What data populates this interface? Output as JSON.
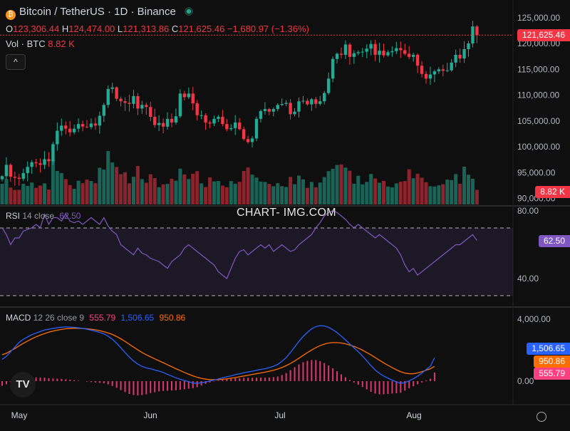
{
  "header": {
    "symbol": "Bitcoin / TetherUS · 1D · Binance",
    "ohlc": {
      "o_label": "O",
      "o": "123,306.44",
      "h_label": "H",
      "h": "124,474.00",
      "l_label": "L",
      "l": "121,313.86",
      "c_label": "C",
      "c": "121,625.46",
      "change": "−1,680.97 (−1.36%)"
    },
    "vol_label": "Vol · BTC",
    "vol_value": "8.82 K",
    "collapse_icon": "^"
  },
  "watermark": "CHART- IMG.COM",
  "colors": {
    "up": "#22ab94",
    "down": "#f23645",
    "rsi": "#7e57c2",
    "macd": "#2962ff",
    "signal": "#ff6d00",
    "hist": "#ff4081"
  },
  "price_axis": {
    "ticks": [
      "125,000.00",
      "120,000.00",
      "115,000.00",
      "110,000.00",
      "105,000.00",
      "100,000.00",
      "95,000.00",
      "90,000.00"
    ],
    "last_tag": "121,625.46",
    "vol_tag": "8.82 K"
  },
  "rsi": {
    "label": "RSI",
    "params": "14 close",
    "value": "62.50",
    "ticks": [
      "80.00",
      "40.00"
    ],
    "tag": "62.50"
  },
  "macd": {
    "label": "MACD",
    "params": "12 26 close 9",
    "hist_value": "555.79",
    "macd_value": "1,506.65",
    "signal_value": "950.86",
    "ticks": [
      "4,000.00",
      "0.00"
    ]
  },
  "time_axis": [
    "May",
    "Jun",
    "Jul",
    "Aug"
  ],
  "chart_data": [
    {
      "type": "candlestick",
      "title": "Bitcoin / TetherUS · 1D · Binance",
      "y_ticks": [
        90000,
        95000,
        100000,
        105000,
        110000,
        115000,
        120000,
        125000
      ],
      "x_tick_labels": [
        "May",
        "Jun",
        "Jul",
        "Aug"
      ],
      "series": [
        {
          "name": "Bitcoin / TetherUS",
          "close": [
            94300,
            96500,
            94200,
            94000,
            93800,
            94900,
            96100,
            97000,
            96800,
            96500,
            97600,
            97200,
            100500,
            103100,
            104100,
            103500,
            102800,
            103500,
            104400,
            103900,
            103800,
            104500,
            104100,
            106000,
            108100,
            111200,
            111500,
            109300,
            108800,
            108500,
            108300,
            109800,
            107400,
            108100,
            107700,
            105800,
            104200,
            104600,
            103900,
            105400,
            104700,
            105900,
            110300,
            109600,
            110300,
            108400,
            106100,
            106100,
            104700,
            104500,
            105400,
            105800,
            104400,
            103400,
            103600,
            104700,
            103400,
            101500,
            100900,
            101600,
            105400,
            106900,
            107300,
            106800,
            107300,
            108100,
            108300,
            108500,
            106300,
            106800,
            108800,
            108900,
            108200,
            109200,
            108300,
            108800,
            110400,
            113200,
            117000,
            118000,
            117800,
            119800,
            117400,
            118100,
            118300,
            118400,
            119000,
            119900,
            117800,
            118600,
            117700,
            118300,
            118500,
            119100,
            118700,
            118000,
            117400,
            117800,
            115700,
            114100,
            113200,
            114000,
            114600,
            115000,
            114700,
            114800,
            116300,
            117800,
            117100,
            118900,
            120000,
            123300,
            121625
          ]
        }
      ]
    },
    {
      "type": "bar",
      "title": "Vol · BTC",
      "series": [
        {
          "name": "Vol · BTC",
          "values": [
            12.5,
            15.3,
            10.2,
            8.8,
            8.8,
            12.5,
            11.2,
            13.2,
            10.0,
            11.4,
            12.7,
            9.0,
            26.9,
            20.2,
            18.9,
            15.3,
            11.7,
            9.4,
            14.3,
            12.8,
            15.0,
            14.1,
            12.8,
            22.1,
            21.0,
            32.2,
            25.3,
            22.6,
            18.2,
            19.4,
            12.7,
            16.7,
            23.2,
            15.3,
            13.1,
            18.2,
            15.9,
            10.4,
            12.1,
            12.4,
            15.5,
            14.3,
            21.6,
            18.1,
            15.3,
            18.5,
            20.1,
            12.7,
            10.5,
            16.3,
            13.9,
            14.1,
            11.4,
            10.4,
            14.1,
            12.5,
            13.6,
            20.2,
            22.3,
            18.0,
            16.2,
            13.8,
            13.6,
            12.4,
            11.0,
            12.8,
            11.0,
            10.5,
            16.6,
            12.2,
            17.4,
            15.1,
            10.0,
            13.6,
            10.3,
            13.2,
            16.5,
            20.1,
            21.5,
            23.8,
            24.1,
            22.2,
            20.3,
            12.5,
            17.3,
            12.1,
            13.6,
            18.4,
            15.7,
            13.1,
            14.2,
            10.8,
            10.3,
            12.7,
            13.7,
            14.1,
            21.2,
            15.8,
            18.5,
            16.1,
            13.4,
            11.0,
            10.8,
            11.5,
            12.2,
            15.0,
            14.7,
            18.3,
            12.5,
            22.8,
            17.9,
            15.5,
            8.8
          ]
        }
      ]
    },
    {
      "type": "line",
      "title": "RSI 14 close",
      "ylim": [
        40,
        80
      ],
      "y_ticks": [
        80,
        40
      ],
      "series": [
        {
          "name": "RSI",
          "values": [
            70,
            66,
            60,
            64,
            64,
            68,
            69,
            70,
            72,
            70,
            78,
            72,
            76,
            76,
            74,
            78,
            74,
            73,
            74,
            72,
            74,
            76,
            74,
            72,
            76,
            71,
            68,
            66,
            60,
            58,
            56,
            54,
            58,
            55,
            54,
            52,
            51,
            50,
            48,
            46,
            50,
            52,
            54,
            58,
            60,
            58,
            56,
            54,
            52,
            50,
            48,
            44,
            42,
            40,
            46,
            52,
            56,
            57,
            54,
            56,
            58,
            60,
            58,
            60,
            56,
            58,
            60,
            58,
            56,
            57,
            60,
            62,
            64,
            66,
            70,
            73,
            77,
            79,
            80,
            79,
            77,
            75,
            72,
            70,
            72,
            70,
            68,
            66,
            64,
            66,
            64,
            62,
            60,
            58,
            54,
            48,
            44,
            46,
            42,
            44,
            46,
            48,
            50,
            52,
            54,
            56,
            58,
            60,
            60,
            62,
            64,
            66,
            62.5
          ]
        }
      ]
    },
    {
      "type": "line",
      "title": "MACD 12 26 close 9",
      "y_ticks": [
        4000,
        0
      ],
      "series": [
        {
          "name": "MACD",
          "values": [
            1400,
            1600,
            1900,
            2200,
            2500,
            2700,
            2850,
            3000,
            3100,
            3200,
            3300,
            3350,
            3400,
            3450,
            3480,
            3500,
            3490,
            3470,
            3440,
            3400,
            3350,
            3290,
            3220,
            3150,
            3050,
            2900,
            2700,
            2450,
            2150,
            1850,
            1550,
            1300,
            1100,
            950,
            850,
            800,
            720,
            650,
            560,
            440,
            330,
            210,
            120,
            40,
            -40,
            -120,
            -140,
            -100,
            -50,
            10,
            70,
            140,
            210,
            280,
            340,
            420,
            470,
            540,
            590,
            640,
            700,
            760,
            800,
            870,
            960,
            1080,
            1280,
            1520,
            1850,
            2200,
            2560,
            2880,
            3150,
            3370,
            3520,
            3580,
            3560,
            3470,
            3320,
            3130,
            2900,
            2660,
            2400,
            2150,
            1900,
            1620,
            1320,
            1000,
            720,
            500,
            330,
            190,
            70,
            -50,
            -140,
            -90,
            20,
            150,
            320,
            520,
            740,
            960,
            1506.65
          ]
        },
        {
          "name": "Signal",
          "values": [
            1700,
            1800,
            1950,
            2100,
            2280,
            2440,
            2590,
            2730,
            2860,
            2970,
            3070,
            3160,
            3230,
            3290,
            3340,
            3380,
            3400,
            3410,
            3410,
            3400,
            3380,
            3350,
            3310,
            3260,
            3190,
            3110,
            3010,
            2880,
            2730,
            2560,
            2380,
            2200,
            2020,
            1850,
            1700,
            1570,
            1440,
            1310,
            1190,
            1060,
            930,
            800,
            680,
            560,
            450,
            340,
            250,
            180,
            130,
            100,
            90,
            100,
            120,
            150,
            190,
            230,
            280,
            330,
            380,
            430,
            480,
            530,
            580,
            640,
            700,
            780,
            880,
            1000,
            1140,
            1300,
            1480,
            1660,
            1840,
            2010,
            2160,
            2290,
            2390,
            2460,
            2490,
            2490,
            2460,
            2410,
            2330,
            2240,
            2130,
            2000,
            1850,
            1690,
            1520,
            1350,
            1180,
            1020,
            870,
            730,
            610,
            520,
            480,
            480,
            530,
            610,
            700,
            800,
            950.86
          ]
        },
        {
          "name": "Histogram",
          "values": [
            -300,
            -200,
            -50,
            100,
            220,
            260,
            260,
            270,
            240,
            230,
            230,
            190,
            170,
            160,
            140,
            120,
            90,
            60,
            30,
            0,
            -30,
            -60,
            -90,
            -110,
            -140,
            -210,
            -310,
            -430,
            -580,
            -710,
            -830,
            -900,
            -920,
            -900,
            -850,
            -770,
            -720,
            -660,
            -630,
            -620,
            -600,
            -590,
            -560,
            -520,
            -490,
            -460,
            -390,
            -280,
            -180,
            -90,
            -20,
            40,
            90,
            130,
            150,
            190,
            190,
            210,
            210,
            210,
            220,
            230,
            220,
            230,
            260,
            300,
            400,
            520,
            710,
            900,
            1080,
            1220,
            1310,
            1360,
            1360,
            1290,
            1170,
            1010,
            830,
            640,
            440,
            250,
            70,
            -90,
            -230,
            -380,
            -530,
            -690,
            -800,
            -850,
            -850,
            -830,
            -800,
            -780,
            -750,
            -610,
            -460,
            -330,
            -210,
            -90,
            40,
            160,
            555.79
          ]
        }
      ]
    }
  ]
}
